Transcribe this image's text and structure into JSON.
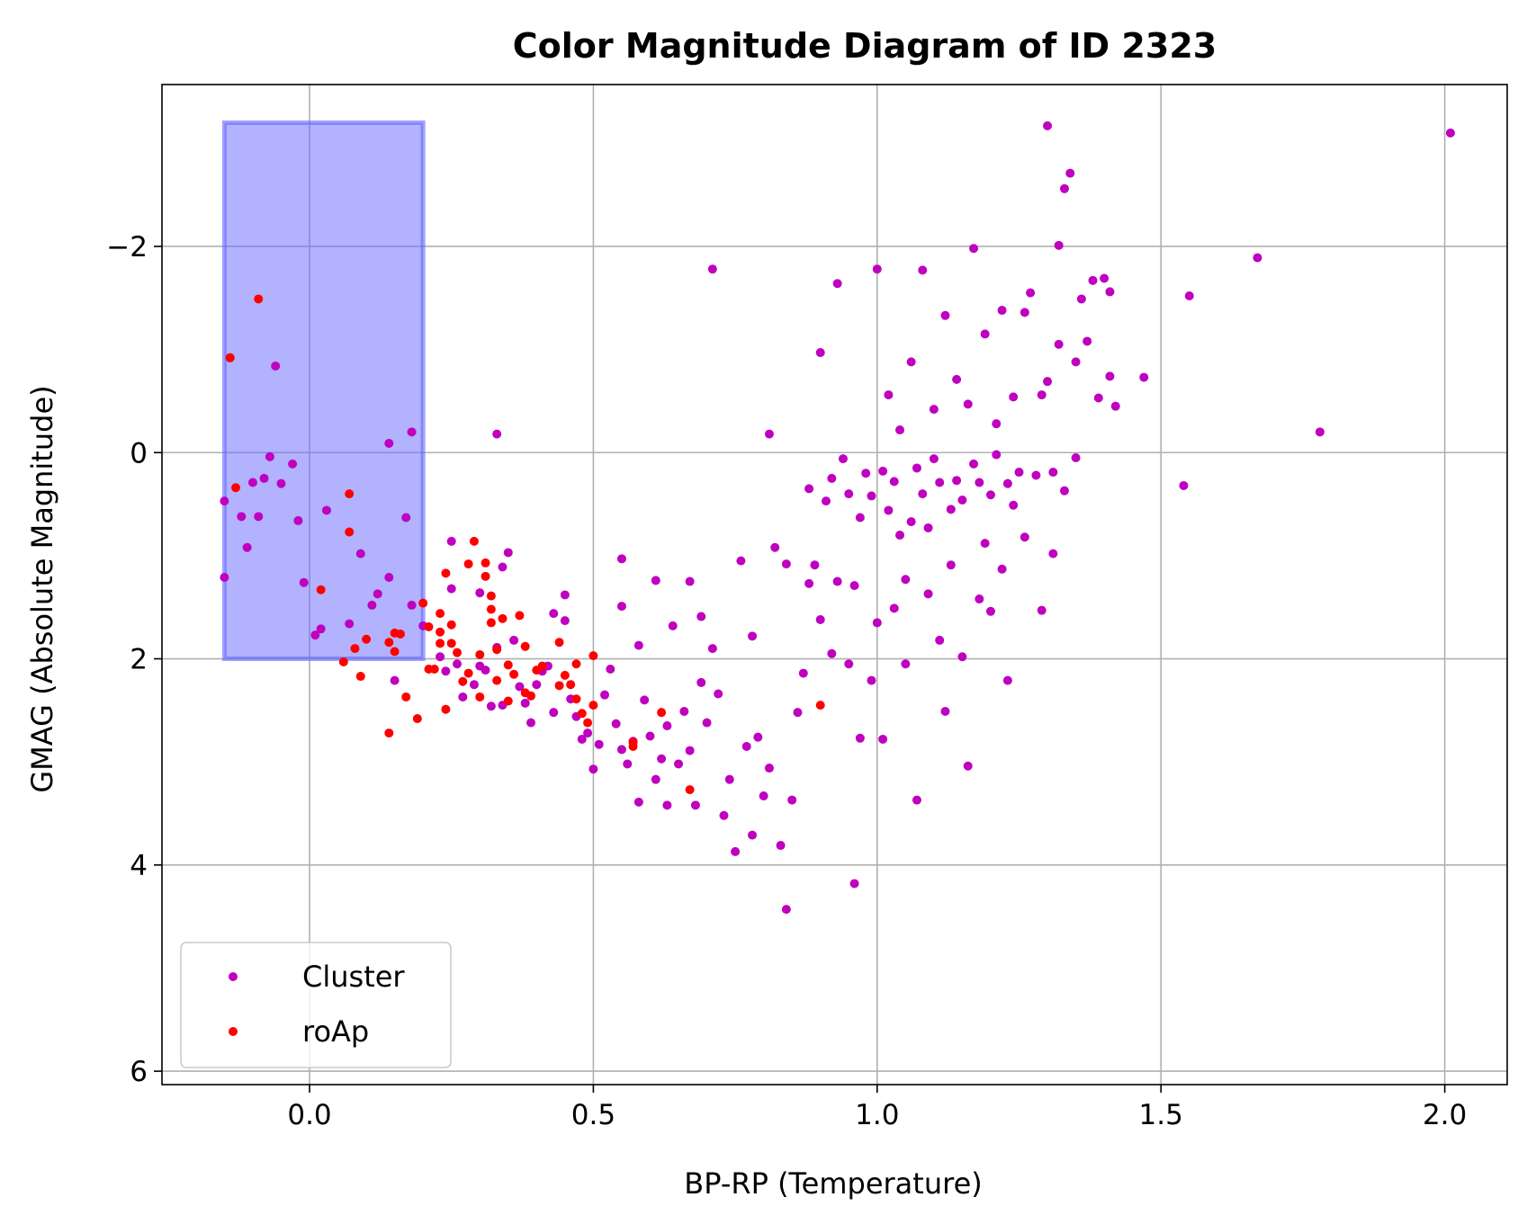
{
  "chart_data": {
    "type": "scatter",
    "title": "Color Magnitude Diagram of ID 2323",
    "xlabel": "BP-RP (Temperature)",
    "ylabel": "GMAG (Absolute Magnitude)",
    "xlim": [
      -0.26,
      2.11
    ],
    "ylim": [
      6.13,
      -3.57
    ],
    "y_inverted": true,
    "grid": true,
    "legend_position": "lower-left",
    "xticks": [
      {
        "v": 0.0,
        "label": "0.0"
      },
      {
        "v": 0.5,
        "label": "0.5"
      },
      {
        "v": 1.0,
        "label": "1.0"
      },
      {
        "v": 1.5,
        "label": "1.5"
      },
      {
        "v": 2.0,
        "label": "2.0"
      }
    ],
    "yticks": [
      {
        "v": -2,
        "label": "−2"
      },
      {
        "v": 0,
        "label": "0"
      },
      {
        "v": 2,
        "label": "2"
      },
      {
        "v": 4,
        "label": "4"
      },
      {
        "v": 6,
        "label": "6"
      }
    ],
    "highlight_region": {
      "x": [
        -0.15,
        0.2
      ],
      "y": [
        -3.2,
        2.0
      ],
      "color": "#6666ff"
    },
    "series": [
      {
        "name": "Cluster",
        "color": "#bf00bf",
        "points": [
          [
            -0.15,
            0.47
          ],
          [
            -0.15,
            1.21
          ],
          [
            -0.14,
            -0.92
          ],
          [
            -0.12,
            0.62
          ],
          [
            -0.11,
            0.92
          ],
          [
            -0.1,
            0.29
          ],
          [
            -0.09,
            0.62
          ],
          [
            -0.08,
            0.25
          ],
          [
            -0.07,
            0.04
          ],
          [
            -0.06,
            -0.84
          ],
          [
            -0.05,
            0.3
          ],
          [
            -0.03,
            0.11
          ],
          [
            -0.02,
            0.66
          ],
          [
            -0.01,
            1.26
          ],
          [
            0.01,
            1.77
          ],
          [
            0.02,
            1.71
          ],
          [
            0.03,
            0.56
          ],
          [
            0.07,
            1.66
          ],
          [
            0.09,
            0.98
          ],
          [
            0.11,
            1.48
          ],
          [
            0.12,
            1.37
          ],
          [
            0.14,
            1.21
          ],
          [
            0.14,
            -0.09
          ],
          [
            0.15,
            2.21
          ],
          [
            0.17,
            0.63
          ],
          [
            0.18,
            -0.2
          ],
          [
            0.18,
            1.48
          ],
          [
            0.2,
            1.68
          ],
          [
            0.23,
            1.98
          ],
          [
            0.24,
            2.12
          ],
          [
            0.25,
            1.32
          ],
          [
            0.25,
            0.86
          ],
          [
            0.26,
            2.05
          ],
          [
            0.27,
            2.37
          ],
          [
            0.29,
            2.25
          ],
          [
            0.3,
            1.36
          ],
          [
            0.3,
            2.07
          ],
          [
            0.31,
            2.11
          ],
          [
            0.32,
            2.46
          ],
          [
            0.33,
            1.89
          ],
          [
            0.33,
            -0.18
          ],
          [
            0.34,
            1.11
          ],
          [
            0.34,
            2.45
          ],
          [
            0.35,
            0.97
          ],
          [
            0.36,
            1.82
          ],
          [
            0.37,
            2.27
          ],
          [
            0.38,
            2.43
          ],
          [
            0.39,
            2.62
          ],
          [
            0.4,
            2.25
          ],
          [
            0.41,
            2.12
          ],
          [
            0.42,
            2.07
          ],
          [
            0.43,
            2.52
          ],
          [
            0.43,
            1.56
          ],
          [
            0.45,
            1.38
          ],
          [
            0.45,
            1.63
          ],
          [
            0.46,
            2.39
          ],
          [
            0.47,
            2.56
          ],
          [
            0.48,
            2.78
          ],
          [
            0.49,
            2.72
          ],
          [
            0.5,
            3.07
          ],
          [
            0.51,
            2.83
          ],
          [
            0.52,
            2.35
          ],
          [
            0.53,
            2.1
          ],
          [
            0.54,
            2.63
          ],
          [
            0.55,
            2.88
          ],
          [
            0.55,
            1.49
          ],
          [
            0.55,
            1.03
          ],
          [
            0.56,
            3.02
          ],
          [
            0.57,
            2.8
          ],
          [
            0.58,
            3.39
          ],
          [
            0.58,
            1.87
          ],
          [
            0.59,
            2.4
          ],
          [
            0.6,
            2.75
          ],
          [
            0.61,
            1.24
          ],
          [
            0.61,
            3.17
          ],
          [
            0.62,
            2.97
          ],
          [
            0.63,
            3.42
          ],
          [
            0.63,
            2.65
          ],
          [
            0.64,
            1.68
          ],
          [
            0.65,
            3.02
          ],
          [
            0.66,
            2.51
          ],
          [
            0.67,
            2.89
          ],
          [
            0.67,
            1.25
          ],
          [
            0.68,
            3.42
          ],
          [
            0.69,
            2.23
          ],
          [
            0.69,
            1.59
          ],
          [
            0.7,
            2.62
          ],
          [
            0.71,
            1.9
          ],
          [
            0.71,
            -1.78
          ],
          [
            0.72,
            2.34
          ],
          [
            0.73,
            3.52
          ],
          [
            0.74,
            3.17
          ],
          [
            0.75,
            3.87
          ],
          [
            0.76,
            1.05
          ],
          [
            0.77,
            2.85
          ],
          [
            0.78,
            3.71
          ],
          [
            0.78,
            1.78
          ],
          [
            0.79,
            2.76
          ],
          [
            0.8,
            3.33
          ],
          [
            0.81,
            3.06
          ],
          [
            0.81,
            -0.18
          ],
          [
            0.82,
            0.92
          ],
          [
            0.83,
            3.81
          ],
          [
            0.84,
            4.43
          ],
          [
            0.84,
            1.08
          ],
          [
            0.85,
            3.37
          ],
          [
            0.86,
            2.52
          ],
          [
            0.87,
            2.14
          ],
          [
            0.88,
            0.35
          ],
          [
            0.88,
            1.27
          ],
          [
            0.89,
            1.09
          ],
          [
            0.9,
            -0.97
          ],
          [
            0.9,
            1.62
          ],
          [
            0.91,
            0.47
          ],
          [
            0.92,
            1.95
          ],
          [
            0.92,
            0.25
          ],
          [
            0.93,
            -1.64
          ],
          [
            0.93,
            1.25
          ],
          [
            0.94,
            0.06
          ],
          [
            0.95,
            2.05
          ],
          [
            0.95,
            0.4
          ],
          [
            0.96,
            1.29
          ],
          [
            0.96,
            4.18
          ],
          [
            0.97,
            2.77
          ],
          [
            0.97,
            0.63
          ],
          [
            0.98,
            0.2
          ],
          [
            0.99,
            0.42
          ],
          [
            0.99,
            2.21
          ],
          [
            1.0,
            1.65
          ],
          [
            1.0,
            -1.78
          ],
          [
            1.01,
            0.18
          ],
          [
            1.01,
            2.78
          ],
          [
            1.02,
            0.56
          ],
          [
            1.02,
            -0.56
          ],
          [
            1.03,
            1.51
          ],
          [
            1.03,
            0.28
          ],
          [
            1.04,
            -0.22
          ],
          [
            1.04,
            0.8
          ],
          [
            1.05,
            1.23
          ],
          [
            1.05,
            2.05
          ],
          [
            1.06,
            0.67
          ],
          [
            1.06,
            -0.88
          ],
          [
            1.07,
            3.37
          ],
          [
            1.07,
            0.15
          ],
          [
            1.08,
            0.4
          ],
          [
            1.08,
            -1.77
          ],
          [
            1.09,
            0.73
          ],
          [
            1.09,
            1.37
          ],
          [
            1.1,
            0.06
          ],
          [
            1.1,
            -0.42
          ],
          [
            1.11,
            1.82
          ],
          [
            1.11,
            0.29
          ],
          [
            1.12,
            2.51
          ],
          [
            1.12,
            -1.33
          ],
          [
            1.13,
            0.55
          ],
          [
            1.13,
            1.09
          ],
          [
            1.14,
            -0.71
          ],
          [
            1.14,
            0.27
          ],
          [
            1.15,
            1.98
          ],
          [
            1.15,
            0.46
          ],
          [
            1.16,
            3.04
          ],
          [
            1.16,
            -0.47
          ],
          [
            1.17,
            0.11
          ],
          [
            1.17,
            -1.98
          ],
          [
            1.18,
            1.42
          ],
          [
            1.18,
            0.29
          ],
          [
            1.19,
            0.88
          ],
          [
            1.19,
            -1.15
          ],
          [
            1.2,
            0.41
          ],
          [
            1.2,
            1.54
          ],
          [
            1.21,
            -0.28
          ],
          [
            1.21,
            0.02
          ],
          [
            1.22,
            1.13
          ],
          [
            1.22,
            -1.38
          ],
          [
            1.23,
            0.3
          ],
          [
            1.23,
            2.21
          ],
          [
            1.24,
            0.51
          ],
          [
            1.24,
            -0.54
          ],
          [
            1.25,
            0.19
          ],
          [
            1.26,
            -1.36
          ],
          [
            1.26,
            0.82
          ],
          [
            1.27,
            -1.55
          ],
          [
            1.28,
            0.22
          ],
          [
            1.29,
            -0.56
          ],
          [
            1.29,
            1.53
          ],
          [
            1.3,
            -3.17
          ],
          [
            1.3,
            -0.69
          ],
          [
            1.31,
            0.19
          ],
          [
            1.31,
            0.98
          ],
          [
            1.32,
            -2.01
          ],
          [
            1.32,
            -1.05
          ],
          [
            1.33,
            -2.56
          ],
          [
            1.33,
            0.37
          ],
          [
            1.34,
            -2.71
          ],
          [
            1.35,
            0.05
          ],
          [
            1.35,
            -0.88
          ],
          [
            1.36,
            -1.49
          ],
          [
            1.37,
            -1.08
          ],
          [
            1.38,
            -1.67
          ],
          [
            1.39,
            -0.53
          ],
          [
            1.4,
            -1.69
          ],
          [
            1.41,
            -0.74
          ],
          [
            1.41,
            -1.56
          ],
          [
            1.42,
            -0.45
          ],
          [
            1.47,
            -0.73
          ],
          [
            1.54,
            0.32
          ],
          [
            1.55,
            -1.52
          ],
          [
            1.67,
            -1.89
          ],
          [
            1.78,
            -0.2
          ],
          [
            2.01,
            -3.1
          ]
        ]
      },
      {
        "name": "roAp",
        "color": "#ff0000",
        "points": [
          [
            -0.14,
            -0.92
          ],
          [
            -0.13,
            0.34
          ],
          [
            -0.09,
            -1.49
          ],
          [
            0.02,
            1.33
          ],
          [
            0.06,
            2.03
          ],
          [
            0.07,
            0.77
          ],
          [
            0.07,
            0.4
          ],
          [
            0.08,
            1.9
          ],
          [
            0.09,
            2.17
          ],
          [
            0.1,
            1.81
          ],
          [
            0.14,
            2.72
          ],
          [
            0.14,
            1.84
          ],
          [
            0.15,
            1.75
          ],
          [
            0.15,
            1.93
          ],
          [
            0.16,
            1.76
          ],
          [
            0.17,
            2.37
          ],
          [
            0.19,
            2.58
          ],
          [
            0.2,
            1.46
          ],
          [
            0.21,
            1.69
          ],
          [
            0.21,
            2.1
          ],
          [
            0.22,
            2.1
          ],
          [
            0.23,
            1.74
          ],
          [
            0.23,
            1.85
          ],
          [
            0.23,
            1.56
          ],
          [
            0.24,
            2.49
          ],
          [
            0.24,
            1.17
          ],
          [
            0.25,
            1.67
          ],
          [
            0.25,
            1.85
          ],
          [
            0.26,
            1.94
          ],
          [
            0.27,
            2.22
          ],
          [
            0.28,
            1.08
          ],
          [
            0.28,
            2.14
          ],
          [
            0.29,
            0.86
          ],
          [
            0.3,
            1.96
          ],
          [
            0.3,
            2.37
          ],
          [
            0.31,
            1.2
          ],
          [
            0.31,
            1.07
          ],
          [
            0.32,
            1.52
          ],
          [
            0.32,
            1.65
          ],
          [
            0.32,
            1.39
          ],
          [
            0.33,
            1.91
          ],
          [
            0.33,
            2.21
          ],
          [
            0.34,
            1.61
          ],
          [
            0.35,
            2.41
          ],
          [
            0.35,
            2.06
          ],
          [
            0.36,
            2.15
          ],
          [
            0.37,
            1.58
          ],
          [
            0.38,
            1.88
          ],
          [
            0.38,
            2.33
          ],
          [
            0.39,
            2.36
          ],
          [
            0.4,
            2.11
          ],
          [
            0.41,
            2.07
          ],
          [
            0.44,
            1.84
          ],
          [
            0.44,
            2.26
          ],
          [
            0.45,
            2.16
          ],
          [
            0.46,
            2.25
          ],
          [
            0.47,
            2.39
          ],
          [
            0.47,
            2.05
          ],
          [
            0.48,
            2.53
          ],
          [
            0.49,
            2.62
          ],
          [
            0.5,
            2.45
          ],
          [
            0.5,
            1.97
          ],
          [
            0.57,
            2.85
          ],
          [
            0.57,
            2.81
          ],
          [
            0.62,
            2.52
          ],
          [
            0.67,
            3.27
          ],
          [
            0.9,
            2.45
          ]
        ]
      }
    ]
  }
}
